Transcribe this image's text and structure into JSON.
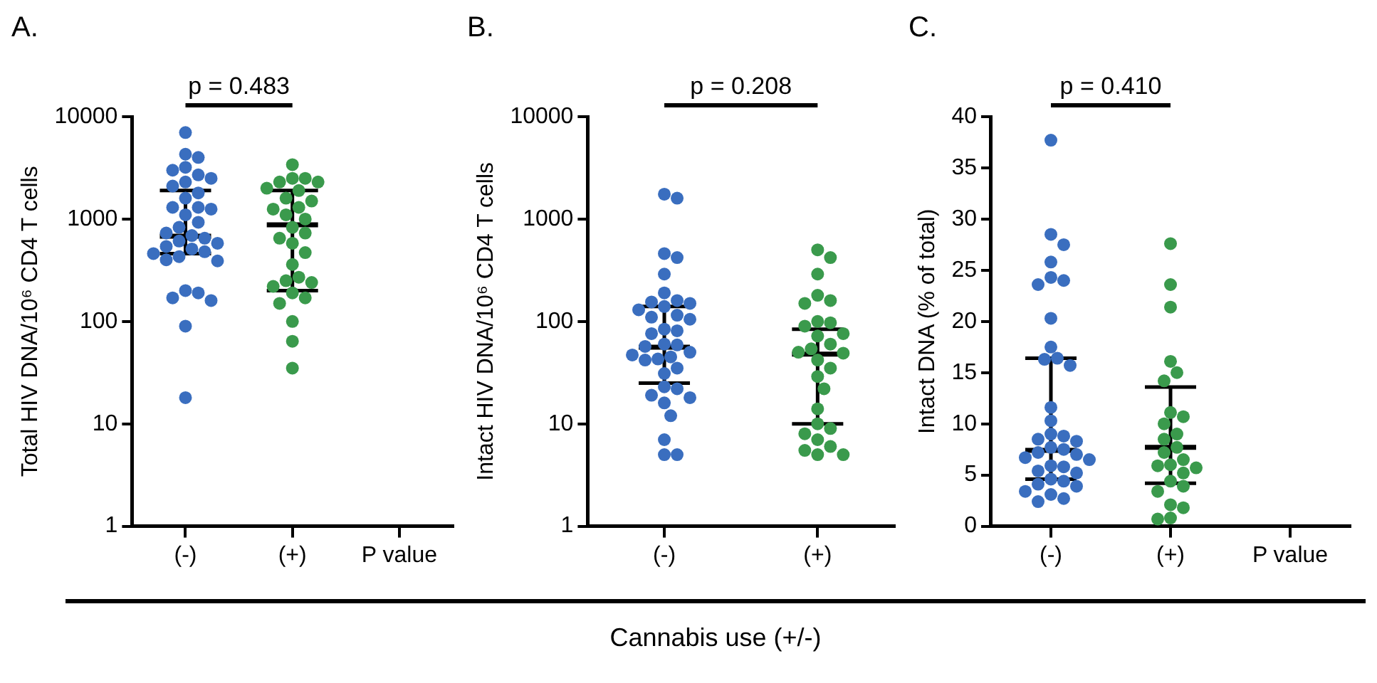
{
  "chart_data": [
    {
      "type": "scatter",
      "title": "A.",
      "ylabel": "Total HIV DNA/10⁶ CD4 T cells",
      "categories": [
        "(-)",
        "(+)",
        "P value"
      ],
      "log": true,
      "ylim": [
        1,
        10000
      ],
      "yticks": [
        1,
        10,
        100,
        1000,
        10000
      ],
      "grid": false,
      "marker": "circle",
      "annotations": [
        "p = 0.483"
      ],
      "series": [
        {
          "color": "#3a6ebf",
          "x": [
            "(-)",
            "(-)",
            "(-)",
            "(-)",
            "(-)",
            "(-)",
            "(-)",
            "(-)",
            "(-)",
            "(-)",
            "(-)",
            "(-)",
            "(-)",
            "(-)",
            "(-)",
            "(-)",
            "(-)",
            "(-)",
            "(-)",
            "(-)",
            "(-)",
            "(-)",
            "(-)",
            "(-)",
            "(-)",
            "(-)",
            "(-)",
            "(-)",
            "(-)",
            "(-)",
            "(-)",
            "(-)",
            "(-)",
            "(-)",
            "(-)"
          ],
          "values": [
            7000,
            4300,
            4000,
            3200,
            3000,
            2700,
            2500,
            2300,
            2100,
            1800,
            1600,
            1300,
            1300,
            1250,
            1100,
            930,
            830,
            730,
            690,
            650,
            610,
            580,
            540,
            510,
            480,
            460,
            430,
            400,
            390,
            200,
            190,
            170,
            160,
            90,
            18
          ]
        },
        {
          "color": "#3a9a4c",
          "x": [
            "(+)",
            "(+)",
            "(+)",
            "(+)",
            "(+)",
            "(+)",
            "(+)",
            "(+)",
            "(+)",
            "(+)",
            "(+)",
            "(+)",
            "(+)",
            "(+)",
            "(+)",
            "(+)",
            "(+)",
            "(+)",
            "(+)",
            "(+)",
            "(+)",
            "(+)",
            "(+)",
            "(+)",
            "(+)",
            "(+)",
            "(+)",
            "(+)",
            "(+)"
          ],
          "values": [
            3400,
            2500,
            2500,
            2300,
            2300,
            2000,
            1900,
            1600,
            1500,
            1300,
            1250,
            1100,
            1000,
            830,
            730,
            650,
            580,
            470,
            360,
            270,
            250,
            240,
            220,
            190,
            170,
            150,
            100,
            64,
            35
          ]
        },
        {
          "type": "box",
          "color": "#000000",
          "x": [
            "(-)",
            "(+)"
          ],
          "boxes": [
            {
              "low": 460,
              "q1": 460,
              "median": 680,
              "q3": 1900,
              "high": 1900
            },
            {
              "low": 200,
              "q1": 200,
              "median": 880,
              "q3": 1900,
              "high": 1900
            }
          ]
        }
      ]
    },
    {
      "type": "scatter",
      "title": "B.",
      "ylabel": "Intact HIV DNA/10⁶ CD4 T cells",
      "xlabel": "Cannabis use (+/-)",
      "categories": [
        "(-)",
        "(+)"
      ],
      "log": true,
      "ylim": [
        1,
        10000
      ],
      "yticks": [
        1,
        10,
        100,
        1000,
        10000
      ],
      "grid": false,
      "marker": "circle",
      "annotations": [
        "p = 0.208"
      ],
      "series": [
        {
          "color": "#3a6ebf",
          "x": [
            "(-)",
            "(-)",
            "(-)",
            "(-)",
            "(-)",
            "(-)",
            "(-)",
            "(-)",
            "(-)",
            "(-)",
            "(-)",
            "(-)",
            "(-)",
            "(-)",
            "(-)",
            "(-)",
            "(-)",
            "(-)",
            "(-)",
            "(-)",
            "(-)",
            "(-)",
            "(-)",
            "(-)",
            "(-)",
            "(-)",
            "(-)",
            "(-)",
            "(-)",
            "(-)",
            "(-)",
            "(-)",
            "(-)",
            "(-)",
            "(-)",
            "(-)"
          ],
          "values": [
            1750,
            1600,
            460,
            420,
            290,
            190,
            160,
            155,
            150,
            140,
            130,
            115,
            110,
            105,
            84,
            81,
            76,
            60,
            59,
            57,
            50,
            47,
            45,
            43,
            42,
            35,
            31,
            23,
            22,
            19,
            18,
            16,
            12,
            7,
            5,
            5
          ]
        },
        {
          "color": "#3a9a4c",
          "x": [
            "(+)",
            "(+)",
            "(+)",
            "(+)",
            "(+)",
            "(+)",
            "(+)",
            "(+)",
            "(+)",
            "(+)",
            "(+)",
            "(+)",
            "(+)",
            "(+)",
            "(+)",
            "(+)",
            "(+)",
            "(+)",
            "(+)",
            "(+)",
            "(+)",
            "(+)",
            "(+)",
            "(+)",
            "(+)",
            "(+)",
            "(+)",
            "(+)"
          ],
          "values": [
            500,
            420,
            290,
            180,
            160,
            150,
            100,
            97,
            90,
            76,
            72,
            60,
            54,
            50,
            49,
            42,
            35,
            29,
            22,
            14,
            10,
            9,
            8,
            7,
            6,
            5.5,
            5,
            5
          ]
        },
        {
          "type": "box",
          "color": "#000000",
          "x": [
            "(-)",
            "(+)"
          ],
          "boxes": [
            {
              "low": 25,
              "q1": 25,
              "median": 56,
              "q3": 140,
              "high": 140
            },
            {
              "low": 10,
              "q1": 10,
              "median": 48,
              "q3": 84,
              "high": 84
            }
          ]
        }
      ]
    },
    {
      "type": "scatter",
      "title": "C.",
      "ylabel": "Intact DNA (% of total)",
      "categories": [
        "(-)",
        "(+)",
        "P value"
      ],
      "ylim": [
        0,
        40
      ],
      "yticks": [
        0,
        5,
        10,
        15,
        20,
        25,
        30,
        35,
        40
      ],
      "grid": false,
      "marker": "circle",
      "annotations": [
        "p = 0.410"
      ],
      "series": [
        {
          "color": "#3a6ebf",
          "x": [
            "(-)",
            "(-)",
            "(-)",
            "(-)",
            "(-)",
            "(-)",
            "(-)",
            "(-)",
            "(-)",
            "(-)",
            "(-)",
            "(-)",
            "(-)",
            "(-)",
            "(-)",
            "(-)",
            "(-)",
            "(-)",
            "(-)",
            "(-)",
            "(-)",
            "(-)",
            "(-)",
            "(-)",
            "(-)",
            "(-)",
            "(-)",
            "(-)",
            "(-)",
            "(-)",
            "(-)",
            "(-)",
            "(-)",
            "(-)",
            "(-)",
            "(-)"
          ],
          "values": [
            37.7,
            28.5,
            27.5,
            25.8,
            24.3,
            24,
            23.6,
            20.3,
            17.5,
            16.4,
            16.3,
            15.7,
            11.6,
            10.3,
            9,
            8.8,
            8.5,
            8.3,
            7.7,
            7.5,
            7.2,
            7,
            6.7,
            6.5,
            5.9,
            5.8,
            5.4,
            5.2,
            4.6,
            4.4,
            4.1,
            3.9,
            3.4,
            3.1,
            2.7,
            2.4
          ]
        },
        {
          "color": "#3a9a4c",
          "x": [
            "(+)",
            "(+)",
            "(+)",
            "(+)",
            "(+)",
            "(+)",
            "(+)",
            "(+)",
            "(+)",
            "(+)",
            "(+)",
            "(+)",
            "(+)",
            "(+)",
            "(+)",
            "(+)",
            "(+)",
            "(+)",
            "(+)",
            "(+)",
            "(+)",
            "(+)",
            "(+)",
            "(+)",
            "(+)"
          ],
          "values": [
            27.6,
            23.6,
            21.4,
            16.1,
            15,
            14.2,
            11.1,
            10.7,
            10,
            9,
            8.5,
            7.7,
            7.2,
            6.5,
            6,
            5.9,
            5.7,
            5.2,
            4.4,
            3.9,
            3.4,
            2.1,
            1.8,
            0.8,
            0.7
          ]
        },
        {
          "type": "box",
          "color": "#000000",
          "x": [
            "(-)",
            "(+)"
          ],
          "boxes": [
            {
              "low": 4.6,
              "q1": 4.6,
              "median": 7.4,
              "q3": 16.4,
              "high": 16.4
            },
            {
              "low": 4.2,
              "q1": 4.2,
              "median": 7.7,
              "q3": 13.6,
              "high": 13.6
            }
          ]
        }
      ]
    }
  ]
}
